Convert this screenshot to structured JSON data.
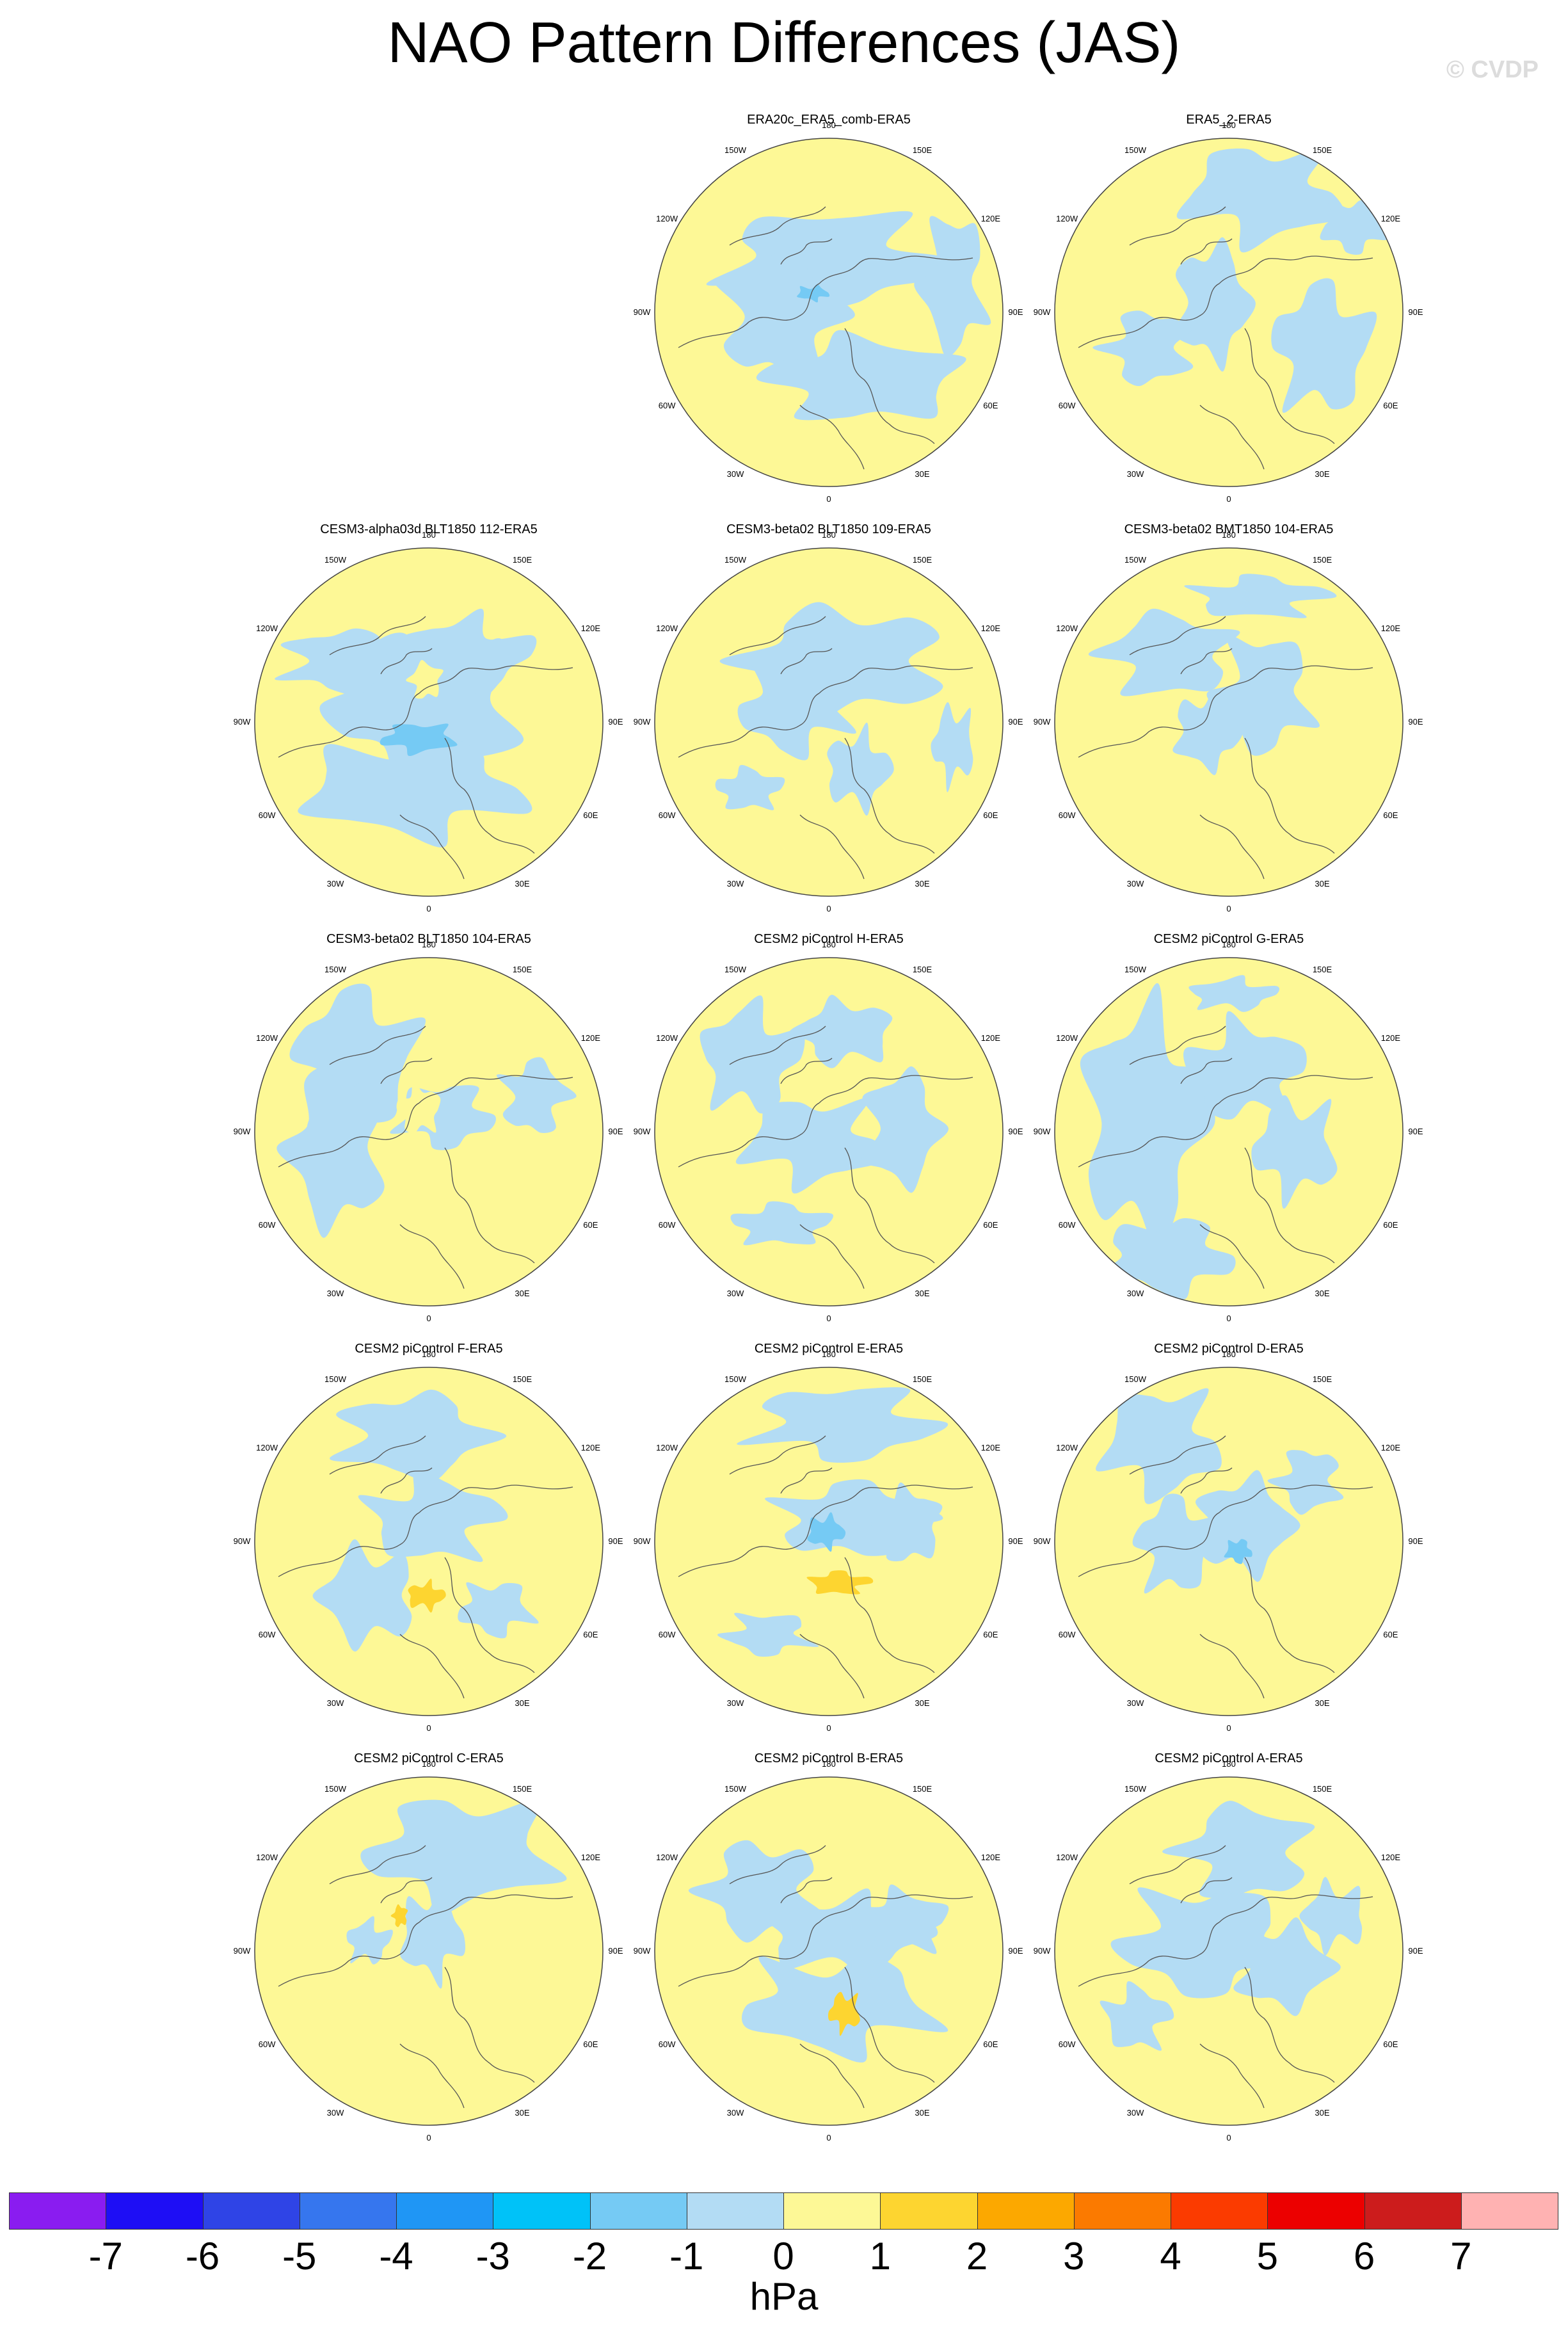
{
  "title": "NAO Pattern Differences (JAS)",
  "watermark": "© CVDP",
  "colors": {
    "yellow": "#fdf896",
    "light_blue": "#b3dcf4",
    "coast": "#555555"
  },
  "map_labels": {
    "top": "180",
    "top_right": "150E",
    "right_upper": "120E",
    "right": "90E",
    "right_lower": "60E",
    "bottom_right": "30E",
    "bottom": "0",
    "bottom_left": "30W",
    "left_lower": "60W",
    "left": "90W",
    "left_upper": "120W",
    "top_left": "150W"
  },
  "panels": [
    {
      "title": "ERA20c_ERA5_comb-ERA5"
    },
    {
      "title": "ERA5_2-ERA5"
    },
    {
      "title": "CESM3-alpha03d BLT1850 112-ERA5"
    },
    {
      "title": "CESM3-beta02 BLT1850 109-ERA5"
    },
    {
      "title": "CESM3-beta02 BMT1850 104-ERA5"
    },
    {
      "title": "CESM3-beta02 BLT1850 104-ERA5"
    },
    {
      "title": "CESM2 piControl H-ERA5"
    },
    {
      "title": "CESM2 piControl G-ERA5"
    },
    {
      "title": "CESM2 piControl F-ERA5"
    },
    {
      "title": "CESM2 piControl E-ERA5"
    },
    {
      "title": "CESM2 piControl D-ERA5"
    },
    {
      "title": "CESM2 piControl C-ERA5"
    },
    {
      "title": "CESM2 piControl B-ERA5"
    },
    {
      "title": "CESM2 piControl A-ERA5"
    }
  ],
  "colorbar": {
    "colors": [
      "#8a1cf0",
      "#1e0ef5",
      "#2f44e6",
      "#3676ee",
      "#1f96f5",
      "#00c2f8",
      "#75caf4",
      "#b3dcf4",
      "#fdf896",
      "#fdd530",
      "#fca800",
      "#fb7a00",
      "#fb3b00",
      "#ec0000",
      "#cc1c1c",
      "#ffb2b2"
    ],
    "ticks": [
      "-7",
      "-6",
      "-5",
      "-4",
      "-3",
      "-2",
      "-1",
      "0",
      "1",
      "2",
      "3",
      "4",
      "5",
      "6",
      "7"
    ],
    "units": "hPa"
  }
}
